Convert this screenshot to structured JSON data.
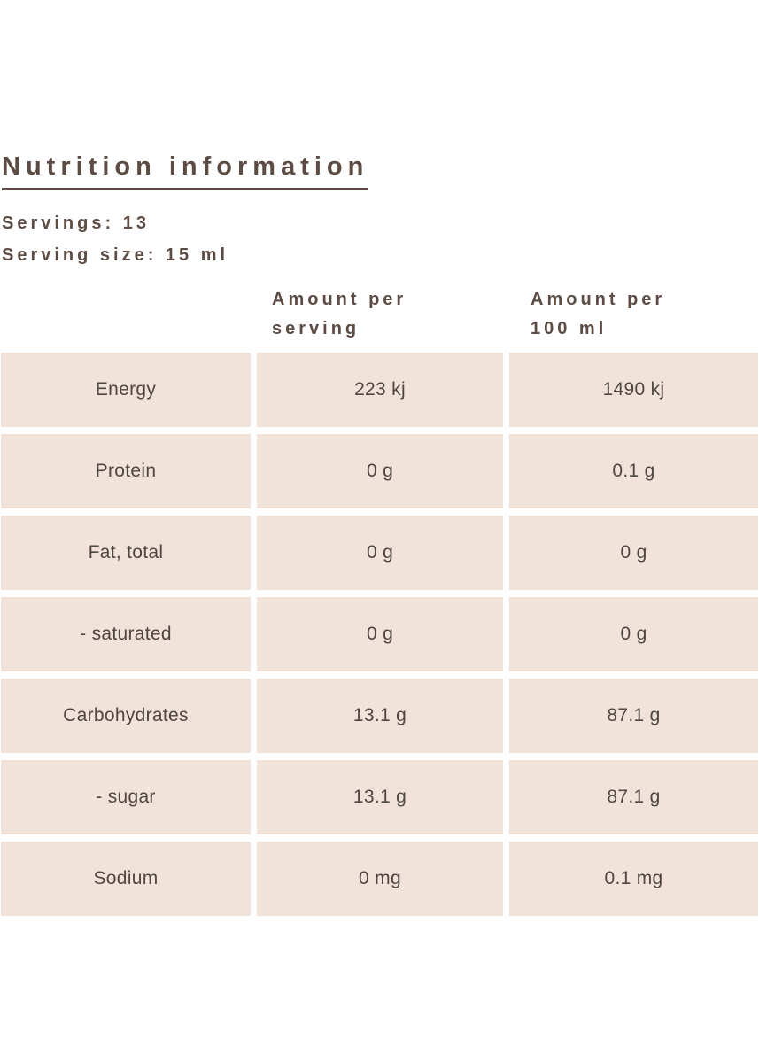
{
  "page": {
    "title": "Nutrition information",
    "servings_label": "Servings: 13",
    "serving_size_label": "Serving size: 15 ml"
  },
  "table": {
    "column_headers": [
      {
        "line1": "Amount per",
        "line2": "serving"
      },
      {
        "line1": "Amount per",
        "line2": "100 ml"
      }
    ],
    "rows": [
      {
        "label": "Energy",
        "per_serving": "223 kj",
        "per_100ml": "1490 kj"
      },
      {
        "label": "Protein",
        "per_serving": "0 g",
        "per_100ml": "0.1 g"
      },
      {
        "label": "Fat, total",
        "per_serving": "0 g",
        "per_100ml": "0 g"
      },
      {
        "label": "- saturated",
        "per_serving": "0 g",
        "per_100ml": "0 g"
      },
      {
        "label": "Carbohydrates",
        "per_serving": "13.1 g",
        "per_100ml": "87.1 g"
      },
      {
        "label": "- sugar",
        "per_serving": "13.1 g",
        "per_100ml": "87.1 g"
      },
      {
        "label": "Sodium",
        "per_serving": "0 mg",
        "per_100ml": "0.1 mg"
      }
    ]
  },
  "colors": {
    "heading": "#5d4c43",
    "cell_bg": "#f1e3da",
    "cell_text": "#4e4741",
    "page_bg": "#ffffff"
  }
}
